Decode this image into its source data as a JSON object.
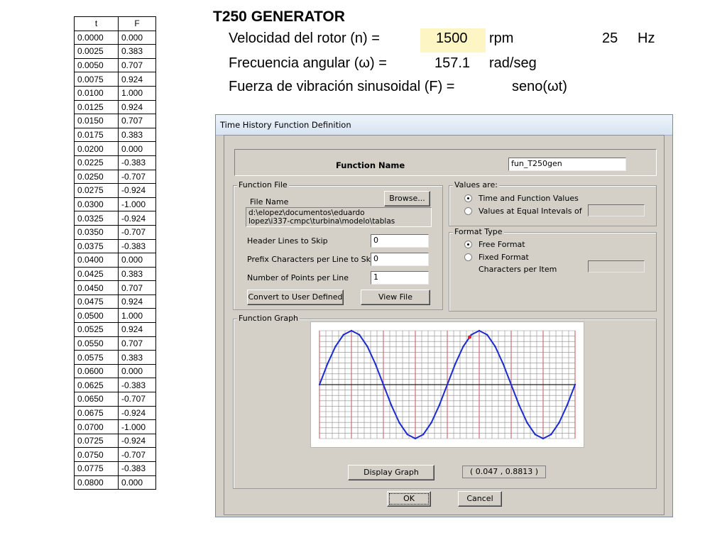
{
  "table": {
    "headers": [
      "t",
      "F"
    ],
    "rows": [
      [
        "0.0000",
        "0.000"
      ],
      [
        "0.0025",
        "0.383"
      ],
      [
        "0.0050",
        "0.707"
      ],
      [
        "0.0075",
        "0.924"
      ],
      [
        "0.0100",
        "1.000"
      ],
      [
        "0.0125",
        "0.924"
      ],
      [
        "0.0150",
        "0.707"
      ],
      [
        "0.0175",
        "0.383"
      ],
      [
        "0.0200",
        "0.000"
      ],
      [
        "0.0225",
        "-0.383"
      ],
      [
        "0.0250",
        "-0.707"
      ],
      [
        "0.0275",
        "-0.924"
      ],
      [
        "0.0300",
        "-1.000"
      ],
      [
        "0.0325",
        "-0.924"
      ],
      [
        "0.0350",
        "-0.707"
      ],
      [
        "0.0375",
        "-0.383"
      ],
      [
        "0.0400",
        "0.000"
      ],
      [
        "0.0425",
        "0.383"
      ],
      [
        "0.0450",
        "0.707"
      ],
      [
        "0.0475",
        "0.924"
      ],
      [
        "0.0500",
        "1.000"
      ],
      [
        "0.0525",
        "0.924"
      ],
      [
        "0.0550",
        "0.707"
      ],
      [
        "0.0575",
        "0.383"
      ],
      [
        "0.0600",
        "0.000"
      ],
      [
        "0.0625",
        "-0.383"
      ],
      [
        "0.0650",
        "-0.707"
      ],
      [
        "0.0675",
        "-0.924"
      ],
      [
        "0.0700",
        "-1.000"
      ],
      [
        "0.0725",
        "-0.924"
      ],
      [
        "0.0750",
        "-0.707"
      ],
      [
        "0.0775",
        "-0.383"
      ],
      [
        "0.0800",
        "0.000"
      ]
    ]
  },
  "header": {
    "title": "T250 GENERATOR",
    "rotor_label": "Velocidad del rotor (n) =",
    "rotor_value": "1500",
    "rotor_unit": "rpm",
    "freq_value": "25",
    "freq_unit": "Hz",
    "angular_label": "Frecuencia angular (ω) =",
    "angular_value": "157.1",
    "angular_unit": "rad/seg",
    "force_label": "Fuerza de vibración sinusoidal (F) =",
    "force_value": "seno(ωt)",
    "highlight_color": "#fdf5c4"
  },
  "dialog": {
    "title": "Time History  Function Definition",
    "function_name_label": "Function Name",
    "function_name_value": "fun_T250gen",
    "function_file": {
      "group_label": "Function File",
      "file_name_label": "File Name",
      "browse_label": "Browse...",
      "path_line1": "d:\\elopez\\documentos\\eduardo",
      "path_line2": "lopez\\i337-cmpc\\turbina\\modelo\\tablas",
      "header_lines_label": "Header Lines to Skip",
      "header_lines_value": "0",
      "prefix_chars_label": "Prefix Characters per Line to Skip",
      "prefix_chars_value": "0",
      "points_label": "Number of Points per Line",
      "points_value": "1",
      "convert_label": "Convert to User Defined",
      "view_file_label": "View File"
    },
    "values_are": {
      "group_label": "Values are:",
      "option1": "Time and Function Values",
      "option2": "Values at Equal Intevals of",
      "selected": 1
    },
    "format_type": {
      "group_label": "Format Type",
      "option1": "Free Format",
      "option2": "Fixed Format",
      "chars_label": "Characters per Item",
      "selected": 1
    },
    "function_graph": {
      "group_label": "Function Graph",
      "display_label": "Display Graph",
      "coord_readout": "( 0.047  ,  0.8813 )",
      "curve_color": "#1c2bd0",
      "grid_color": "#8a8a8a",
      "major_grid_color": "#c9515a",
      "marker_color": "#e0202a"
    },
    "ok_label": "OK",
    "cancel_label": "Cancel"
  },
  "chart_data": {
    "type": "line",
    "x": [
      0.0,
      0.0025,
      0.005,
      0.0075,
      0.01,
      0.0125,
      0.015,
      0.0175,
      0.02,
      0.0225,
      0.025,
      0.0275,
      0.03,
      0.0325,
      0.035,
      0.0375,
      0.04,
      0.0425,
      0.045,
      0.0475,
      0.05,
      0.0525,
      0.055,
      0.0575,
      0.06,
      0.0625,
      0.065,
      0.0675,
      0.07,
      0.0725,
      0.075,
      0.0775,
      0.08
    ],
    "series": [
      {
        "values": [
          0.0,
          0.383,
          0.707,
          0.924,
          1.0,
          0.924,
          0.707,
          0.383,
          0.0,
          -0.383,
          -0.707,
          -0.924,
          -1.0,
          -0.924,
          -0.707,
          -0.383,
          0.0,
          0.383,
          0.707,
          0.924,
          1.0,
          0.924,
          0.707,
          0.383,
          0.0,
          -0.383,
          -0.707,
          -0.924,
          -1.0,
          -0.924,
          -0.707,
          -0.383,
          0.0
        ]
      }
    ],
    "xlim": [
      0,
      0.08
    ],
    "ylim": [
      -1,
      1
    ],
    "grid": true,
    "marker": {
      "x": 0.047,
      "y": 0.8813
    }
  }
}
